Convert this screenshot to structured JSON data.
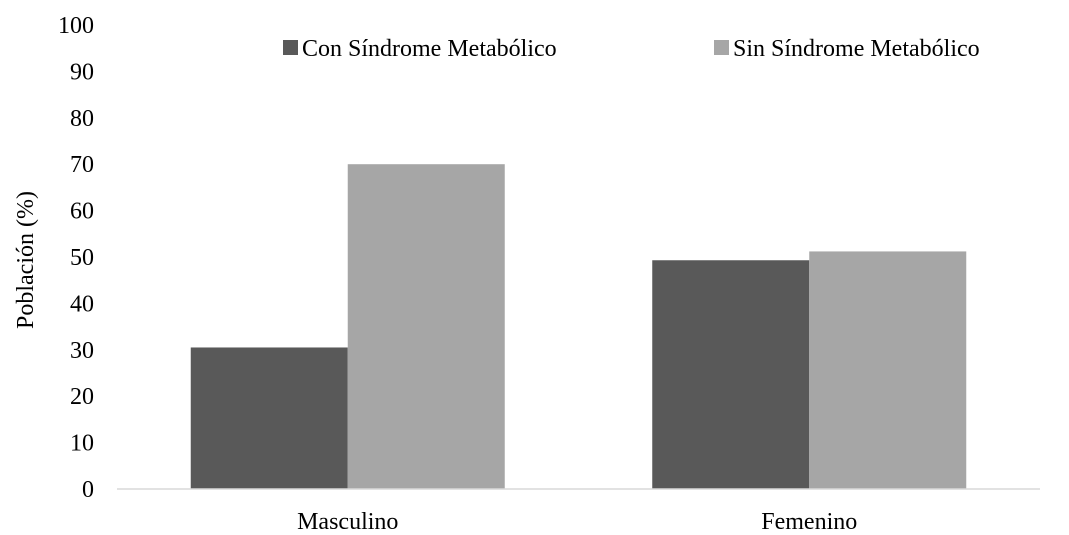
{
  "chart_data": {
    "type": "bar",
    "categories": [
      "Masculino",
      "Femenino"
    ],
    "series": [
      {
        "name": "Con Síndrome Metabólico",
        "values": [
          30.5,
          49.3
        ],
        "color": "#595959"
      },
      {
        "name": "Sin Síndrome Metabólico",
        "values": [
          70.0,
          51.2
        ],
        "color": "#a6a6a6"
      }
    ],
    "title": "",
    "xlabel": "",
    "ylabel": "Población (%)",
    "ylim": [
      0,
      100
    ],
    "yticks": [
      0,
      10,
      20,
      30,
      40,
      50,
      60,
      70,
      80,
      90,
      100
    ],
    "grid": false,
    "legend_position": "top"
  }
}
